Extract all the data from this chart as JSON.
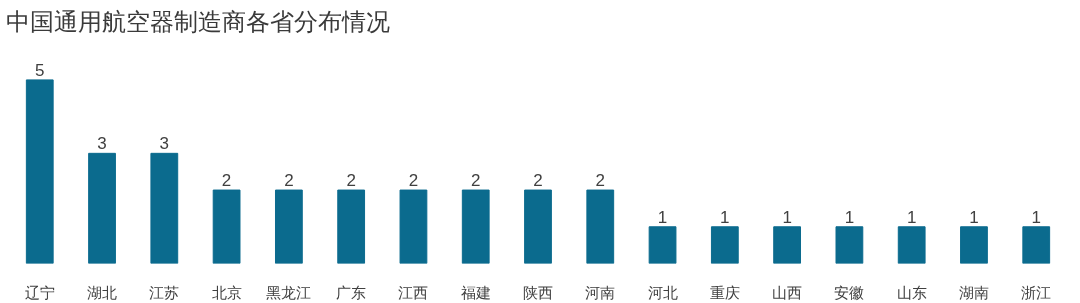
{
  "chart_data": {
    "type": "bar",
    "title": "中国通用航空器制造商各省分布情况",
    "categories": [
      "辽宁",
      "湖北",
      "江苏",
      "北京",
      "黑龙江",
      "广东",
      "江西",
      "福建",
      "陕西",
      "河南",
      "河北",
      "重庆",
      "山西",
      "安徽",
      "山东",
      "湖南",
      "浙江"
    ],
    "values": [
      5,
      3,
      3,
      2,
      2,
      2,
      2,
      2,
      2,
      2,
      1,
      1,
      1,
      1,
      1,
      1,
      1
    ],
    "color": "#0b6b8e",
    "data_labels": true
  }
}
